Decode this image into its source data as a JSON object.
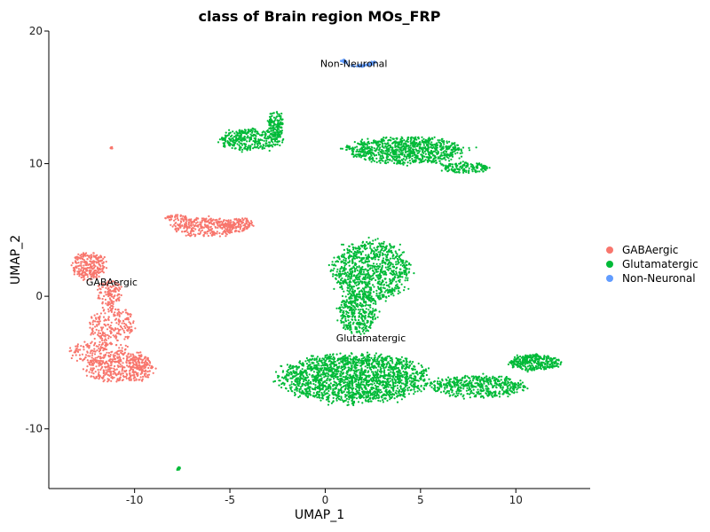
{
  "chart_data": {
    "type": "scatter",
    "title": "class of Brain region MOs_FRP",
    "xlabel": "UMAP_1",
    "ylabel": "UMAP_2",
    "xlim": [
      -14.5,
      13.9
    ],
    "ylim": [
      -14.5,
      20.0
    ],
    "xticks": [
      -10,
      -5,
      0,
      5,
      10
    ],
    "yticks": [
      -10,
      0,
      10,
      20
    ],
    "xtick_labels": [
      "-10",
      "-5",
      "0",
      "5",
      "10"
    ],
    "ytick_labels": [
      "-10",
      "0",
      "10",
      "20"
    ],
    "grid": false,
    "legend_position": "right",
    "series": [
      {
        "name": "GABAergic",
        "color": "#F8766D",
        "regions": [
          {
            "cx": -12.4,
            "cy": 2.3,
            "rx": 0.9,
            "ry": 1.0,
            "n": 260
          },
          {
            "cx": -11.3,
            "cy": 0.3,
            "rx": 0.6,
            "ry": 1.0,
            "n": 120
          },
          {
            "cx": -11.2,
            "cy": -2.2,
            "rx": 1.2,
            "ry": 1.3,
            "n": 220
          },
          {
            "cx": -11.8,
            "cy": -4.3,
            "rx": 1.6,
            "ry": 0.9,
            "n": 200
          },
          {
            "cx": -10.8,
            "cy": -5.6,
            "rx": 1.8,
            "ry": 0.9,
            "n": 320
          },
          {
            "cx": -9.8,
            "cy": -4.9,
            "rx": 0.6,
            "ry": 0.7,
            "n": 90
          },
          {
            "cx": -6.3,
            "cy": 5.2,
            "rx": 1.7,
            "ry": 0.7,
            "n": 300
          },
          {
            "cx": -4.6,
            "cy": 5.4,
            "rx": 0.8,
            "ry": 0.5,
            "n": 120
          },
          {
            "cx": -7.8,
            "cy": 5.9,
            "rx": 0.6,
            "ry": 0.25,
            "n": 40
          },
          {
            "cx": -11.2,
            "cy": 11.2,
            "rx": 0.08,
            "ry": 0.1,
            "n": 8
          }
        ],
        "label": {
          "text": "GABAergic",
          "x": -11.2,
          "y": 0.8
        }
      },
      {
        "name": "Glutamatergic",
        "color": "#00BA38",
        "regions": [
          {
            "cx": -3.9,
            "cy": 11.8,
            "rx": 1.6,
            "ry": 0.8,
            "n": 340
          },
          {
            "cx": -2.6,
            "cy": 12.9,
            "rx": 0.4,
            "ry": 1.0,
            "n": 140
          },
          {
            "cx": 4.2,
            "cy": 11.0,
            "rx": 3.0,
            "ry": 1.0,
            "n": 900
          },
          {
            "cx": 7.3,
            "cy": 9.7,
            "rx": 1.3,
            "ry": 0.4,
            "n": 150
          },
          {
            "cx": 2.4,
            "cy": 1.9,
            "rx": 2.0,
            "ry": 2.2,
            "n": 900
          },
          {
            "cx": 1.7,
            "cy": -1.2,
            "rx": 1.0,
            "ry": 1.6,
            "n": 350
          },
          {
            "cx": 1.5,
            "cy": -6.2,
            "rx": 3.8,
            "ry": 1.8,
            "n": 1900
          },
          {
            "cx": 8.0,
            "cy": -6.8,
            "rx": 2.5,
            "ry": 0.8,
            "n": 500
          },
          {
            "cx": 11.0,
            "cy": -5.0,
            "rx": 1.3,
            "ry": 0.6,
            "n": 350
          },
          {
            "cx": -7.7,
            "cy": -13.0,
            "rx": 0.1,
            "ry": 0.12,
            "n": 10
          }
        ],
        "label": {
          "text": "Glutamatergic",
          "x": 2.4,
          "y": -3.4
        }
      },
      {
        "name": "Non-Neuronal",
        "color": "#619CFF",
        "regions": [
          {
            "cx": 1.8,
            "cy": 18.0,
            "rx": 1.0,
            "ry": 0.7,
            "n": 90,
            "arc": true
          }
        ],
        "label": {
          "text": "Non-Neuronal",
          "x": 1.5,
          "y": 17.3
        }
      }
    ]
  }
}
